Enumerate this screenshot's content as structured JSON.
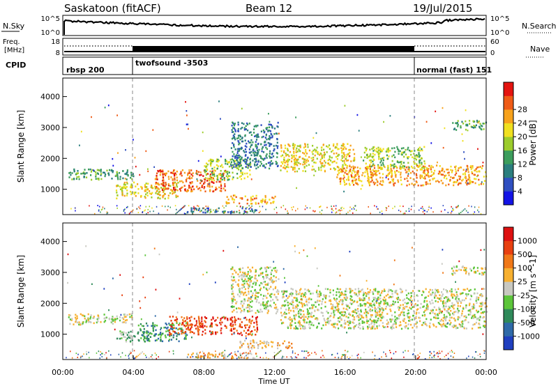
{
  "header": {
    "site": "Saskatoon (fitACF)",
    "beam": "Beam 12",
    "date": "19/Jul/2015"
  },
  "top_panels": {
    "nsky": {
      "label": "N.Sky",
      "ticks_left": [
        "10^5",
        "10^0"
      ],
      "ticks_right": [
        "10^5",
        "10^0"
      ],
      "right_label": "N.Search"
    },
    "freq": {
      "label_line1": "Freq.",
      "label_line2": "[MHz]",
      "ticks_left": [
        "18",
        "8"
      ],
      "ticks_right": [
        "60",
        "0"
      ],
      "right_label": "Nave"
    },
    "cpid": {
      "label": "CPID",
      "segments": [
        {
          "name": "rbsp 200",
          "start_h": 0,
          "end_h": 4
        },
        {
          "name": "twofsound -3503",
          "start_h": 4,
          "end_h": 20
        },
        {
          "name": "normal (fast) 151",
          "start_h": 20,
          "end_h": 24
        }
      ]
    }
  },
  "chart_data": [
    {
      "type": "heatmap",
      "panel": "power",
      "ylabel": "Slant Range [km]",
      "yticks": [
        1000,
        2000,
        3000,
        4000
      ],
      "ylim": [
        180,
        4600
      ],
      "xlim": [
        0,
        24
      ],
      "colorbar": {
        "label": "Power [dB]",
        "ticks": [
          "4",
          "8",
          "12",
          "16",
          "20",
          "24",
          "28"
        ],
        "colors": [
          "#1313e6",
          "#2f4fc0",
          "#2b7e7e",
          "#3c9d5c",
          "#9ccc2c",
          "#f0e020",
          "#f7a21c",
          "#ef5b16",
          "#e41410"
        ]
      },
      "echo_regions": [
        {
          "t0": 0.3,
          "t1": 4.0,
          "r0": 1330,
          "r1": 1680,
          "level": 3
        },
        {
          "t0": 3.0,
          "t1": 6.5,
          "r0": 720,
          "r1": 1250,
          "level": 5
        },
        {
          "t0": 5.2,
          "t1": 9.2,
          "r0": 950,
          "r1": 1650,
          "level": 7
        },
        {
          "t0": 8.0,
          "t1": 10.6,
          "r0": 1300,
          "r1": 2000,
          "level": 4
        },
        {
          "t0": 9.2,
          "t1": 12.0,
          "r0": 560,
          "r1": 830,
          "level": 6
        },
        {
          "t0": 9.5,
          "t1": 12.2,
          "r0": 1700,
          "r1": 3200,
          "level": 2
        },
        {
          "t0": 12.3,
          "t1": 16.5,
          "r0": 1600,
          "r1": 2500,
          "level": 5
        },
        {
          "t0": 15.5,
          "t1": 24.0,
          "r0": 1150,
          "r1": 1800,
          "level": 6
        },
        {
          "t0": 17.0,
          "t1": 20.5,
          "r0": 1700,
          "r1": 2400,
          "level": 4
        },
        {
          "t0": 22.0,
          "t1": 24.0,
          "r0": 2950,
          "r1": 3250,
          "level": 3
        },
        {
          "t0": 7.0,
          "t1": 11.0,
          "r0": 250,
          "r1": 420,
          "level": 2
        }
      ]
    },
    {
      "type": "heatmap",
      "panel": "velocity",
      "ylabel": "Slant Range [km]",
      "yticks": [
        1000,
        2000,
        3000,
        4000
      ],
      "ylim": [
        180,
        4600
      ],
      "xlim": [
        0,
        24
      ],
      "xticks": [
        "00:00",
        "04:00",
        "08:00",
        "12:00",
        "16:00",
        "20:00",
        "00:00"
      ],
      "xlabel": "Time UT",
      "colorbar": {
        "label": "Velocity [m s^-1]",
        "ticks": [
          "1000",
          "500",
          "100",
          "25",
          "-25",
          "-100",
          "-500",
          "-1000"
        ],
        "colors": [
          "#1f3fbf",
          "#2f6aa8",
          "#2f8a5a",
          "#5cc53a",
          "#c8c8c0",
          "#f7b030",
          "#f07818",
          "#e84010",
          "#dd1010"
        ]
      },
      "echo_regions": [
        {
          "t0": 0.3,
          "t1": 4.0,
          "r0": 1330,
          "r1": 1680,
          "level": 4
        },
        {
          "t0": 3.0,
          "t1": 4.8,
          "r0": 780,
          "r1": 1150,
          "level": 3
        },
        {
          "t0": 4.2,
          "t1": 7.0,
          "r0": 800,
          "r1": 1400,
          "level": 2
        },
        {
          "t0": 6.0,
          "t1": 11.0,
          "r0": 1000,
          "r1": 1600,
          "level": 7
        },
        {
          "t0": 10.0,
          "t1": 13.0,
          "r0": 560,
          "r1": 830,
          "level": 5
        },
        {
          "t0": 9.5,
          "t1": 12.2,
          "r0": 1700,
          "r1": 3200,
          "level": 4
        },
        {
          "t0": 12.3,
          "t1": 24.0,
          "r0": 1200,
          "r1": 2500,
          "level": 4
        },
        {
          "t0": 22.0,
          "t1": 24.0,
          "r0": 2950,
          "r1": 3250,
          "level": 4
        },
        {
          "t0": 7.0,
          "t1": 11.0,
          "r0": 250,
          "r1": 420,
          "level": 5
        }
      ]
    }
  ]
}
